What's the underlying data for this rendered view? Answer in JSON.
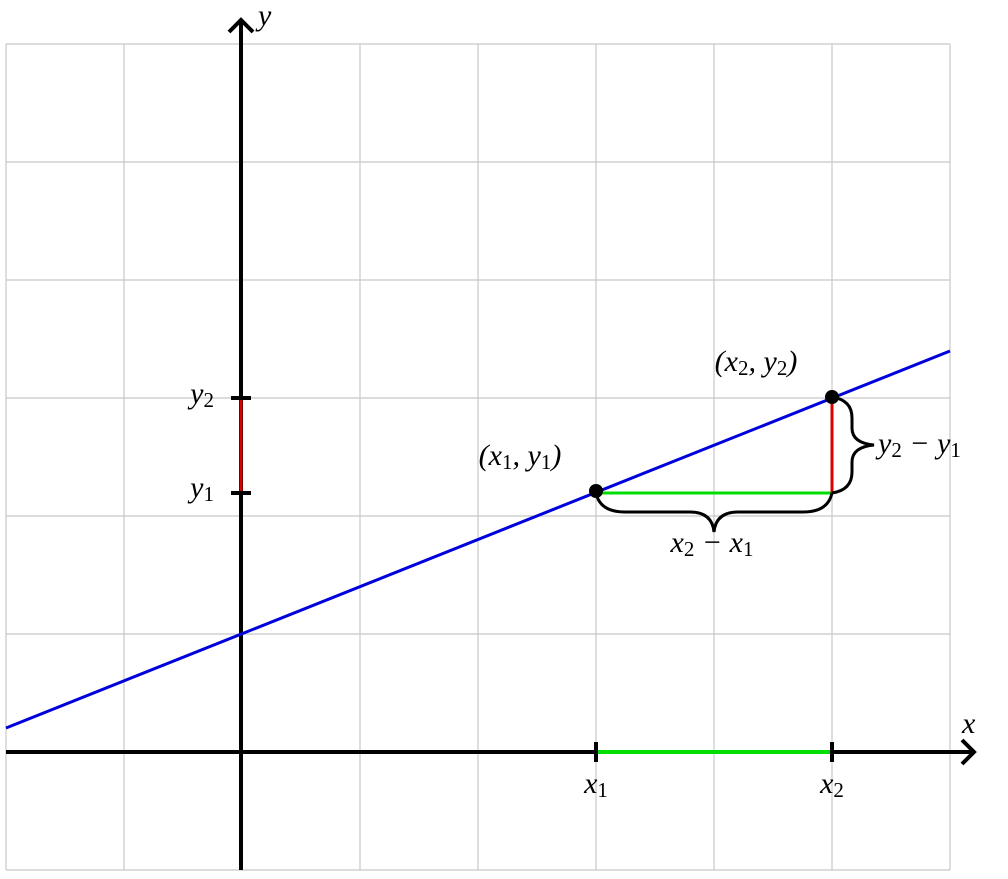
{
  "axes": {
    "x_label": [
      "x"
    ],
    "y_label": [
      "y"
    ]
  },
  "ticks": {
    "x1": [
      "x",
      "1"
    ],
    "x2": [
      "x",
      "2"
    ],
    "y1": [
      "y",
      "1"
    ],
    "y2": [
      "y",
      "2"
    ]
  },
  "points": {
    "p1": [
      "(x",
      "1",
      ", y",
      "1",
      ")"
    ],
    "p2": [
      "(x",
      "2",
      ", y",
      "2",
      ")"
    ]
  },
  "braces": {
    "dx": [
      "x",
      "2",
      " − x",
      "1"
    ],
    "dy": [
      "y",
      "2",
      " − y",
      "1"
    ]
  }
}
